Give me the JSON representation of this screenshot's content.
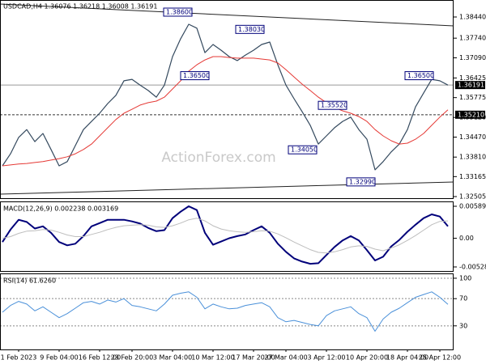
{
  "chart_data": [
    {
      "type": "line",
      "title": "USDCAD,H4  1.36076 1.36218 1.36008 1.36191",
      "watermark": "ActionForex.com",
      "ylim": [
        1.32452,
        1.39001
      ],
      "yticks": [
        {
          "value": 1.3844,
          "label": "1.38440"
        },
        {
          "value": 1.3774,
          "label": "1.37740"
        },
        {
          "value": 1.3709,
          "label": "1.37090"
        },
        1.36425,
        1.35775,
        {
          "value": 1.3512,
          "label": "1.35120"
        },
        {
          "value": 1.3447,
          "label": "1.34470"
        },
        {
          "value": 1.3381,
          "label": "1.33810"
        },
        1.33165,
        1.32505
      ],
      "series": [
        {
          "color": "#34495e",
          "width": 1.2,
          "values": [
            1.3352,
            1.3392,
            1.3446,
            1.3472,
            1.3432,
            1.3459,
            1.3406,
            1.3352,
            1.3366,
            1.3419,
            1.3472,
            1.3499,
            1.3526,
            1.3558,
            1.3585,
            1.3633,
            1.3638,
            1.3619,
            1.3601,
            1.3579,
            1.3619,
            1.3713,
            1.3772,
            1.382,
            1.3807,
            1.3726,
            1.3753,
            1.3734,
            1.3713,
            1.37,
            1.3718,
            1.3734,
            1.3753,
            1.3761,
            1.3686,
            1.3619,
            1.3574,
            1.3531,
            1.3486,
            1.3424,
            1.3451,
            1.3478,
            1.3499,
            1.3513,
            1.3472,
            1.344,
            1.3339,
            1.3366,
            1.3398,
            1.3424,
            1.3472,
            1.3547,
            1.3593,
            1.3638,
            1.3633,
            1.3619
          ]
        },
        {
          "color": "#e53935",
          "width": 1,
          "values": [
            1.3352,
            1.3355,
            1.3358,
            1.336,
            1.3363,
            1.3366,
            1.3371,
            1.3376,
            1.3382,
            1.3392,
            1.3406,
            1.3424,
            1.3451,
            1.3478,
            1.3505,
            1.3526,
            1.3539,
            1.3553,
            1.3561,
            1.3566,
            1.3579,
            1.3606,
            1.3633,
            1.3665,
            1.3686,
            1.3702,
            1.3713,
            1.3713,
            1.371,
            1.3708,
            1.3708,
            1.3708,
            1.3705,
            1.3702,
            1.3692,
            1.367,
            1.3646,
            1.3622,
            1.3601,
            1.3579,
            1.3561,
            1.3545,
            1.3534,
            1.3526,
            1.3515,
            1.3499,
            1.3472,
            1.3451,
            1.3435,
            1.3424,
            1.3427,
            1.344,
            1.3459,
            1.3486,
            1.3513,
            1.3537
          ]
        }
      ],
      "price_lines": [
        {
          "value": 1.36191,
          "label": "1.36191",
          "style": "solid",
          "color": "#999999"
        },
        {
          "value": 1.3521,
          "label": "1.35210",
          "style": "dashed",
          "color": "#333333"
        }
      ],
      "annotations": [
        {
          "value": 1.386,
          "label": "1.38600"
        },
        {
          "value": 1.3803,
          "label": "1.38030"
        },
        {
          "value": 1.365,
          "label": "1.36500"
        },
        {
          "value": 1.3552,
          "label": "1.35520"
        },
        {
          "value": 1.3405,
          "label": "1.34050"
        },
        {
          "value": 1.3299,
          "label": "1.32990"
        },
        {
          "value": 1.365,
          "label": "1.36500"
        }
      ]
    },
    {
      "type": "line",
      "title": "MACD(12,26,9) 0.002238 0.003169",
      "ylim": [
        -0.00618,
        0.00664
      ],
      "yticks": [
        0.005895,
        {
          "value": 0,
          "label": "0.00"
        },
        -0.005286
      ],
      "series": [
        {
          "color": "#00007a",
          "width": 2,
          "values": [
            -0.0007,
            0.0016,
            0.0034,
            0.003,
            0.0018,
            0.0022,
            0.001,
            -0.0007,
            -0.0013,
            -0.001,
            0.0004,
            0.0022,
            0.0028,
            0.0034,
            0.0034,
            0.0034,
            0.0031,
            0.0027,
            0.0019,
            0.0013,
            0.0015,
            0.0037,
            0.0049,
            0.0059,
            0.0052,
            0.001,
            -0.0012,
            -0.0006,
            0,
            0.0004,
            0.0007,
            0.0015,
            0.0022,
            0.001,
            -0.001,
            -0.0025,
            -0.0037,
            -0.0043,
            -0.0047,
            -0.0046,
            -0.0031,
            -0.0016,
            -0.0004,
            0.0004,
            -0.0004,
            -0.0022,
            -0.0041,
            -0.0034,
            -0.0015,
            -0.0003,
            0.0012,
            0.0025,
            0.0037,
            0.0044,
            0.004,
            0.0022
          ]
        },
        {
          "color": "#bdbdbd",
          "width": 1,
          "values": [
            0,
            0.0003,
            0.0009,
            0.0013,
            0.0014,
            0.0016,
            0.0015,
            0.0011,
            0.0006,
            0.0003,
            0.0003,
            0.0007,
            0.0011,
            0.0016,
            0.002,
            0.0023,
            0.0024,
            0.0025,
            0.0024,
            0.0021,
            0.002,
            0.0023,
            0.0028,
            0.0034,
            0.0037,
            0.0032,
            0.0023,
            0.0017,
            0.0014,
            0.0012,
            0.0011,
            0.0012,
            0.0014,
            0.0013,
            0.0008,
            0.0001,
            -0.0007,
            -0.0014,
            -0.0021,
            -0.0026,
            -0.0027,
            -0.0025,
            -0.0021,
            -0.0016,
            -0.0014,
            -0.0015,
            -0.002,
            -0.0023,
            -0.0018,
            -0.0012,
            -0.0004,
            0.0005,
            0.0015,
            0.0025,
            0.0031,
            0.0032
          ]
        }
      ]
    },
    {
      "type": "line",
      "title": "RSI(14) 61.6260",
      "ylim": [
        -4.7,
        105.9
      ],
      "yticks": [
        100,
        70,
        30
      ],
      "grid": true,
      "categories": [
        null,
        null,
        "1 Feb 2023",
        null,
        null,
        null,
        null,
        "9 Feb 04:00",
        null,
        null,
        null,
        null,
        "16 Feb 12:00",
        null,
        null,
        null,
        "23 Feb 20:00",
        null,
        null,
        null,
        null,
        "3 Mar 04:00",
        null,
        null,
        null,
        null,
        "10 Mar 12:00",
        null,
        null,
        null,
        null,
        "17 Mar 20:00",
        null,
        null,
        null,
        "27 Mar 04:00",
        null,
        null,
        null,
        null,
        "3 Apr 12:00",
        null,
        null,
        null,
        null,
        "10 Apr 20:00",
        null,
        null,
        null,
        null,
        "18 Apr 04:00",
        null,
        null,
        null,
        "25 Apr 12:00",
        null
      ],
      "series": [
        {
          "color": "#4a90d9",
          "width": 1,
          "values": [
            50,
            60,
            66,
            62,
            52,
            58,
            50,
            42,
            48,
            56,
            64,
            66,
            62,
            68,
            65,
            70,
            60,
            58,
            55,
            52,
            62,
            75,
            78,
            80,
            72,
            55,
            62,
            58,
            55,
            56,
            60,
            62,
            64,
            58,
            42,
            36,
            38,
            35,
            32,
            30,
            45,
            52,
            55,
            58,
            48,
            42,
            22,
            40,
            50,
            56,
            64,
            72,
            76,
            80,
            72,
            61.626
          ]
        }
      ]
    }
  ]
}
